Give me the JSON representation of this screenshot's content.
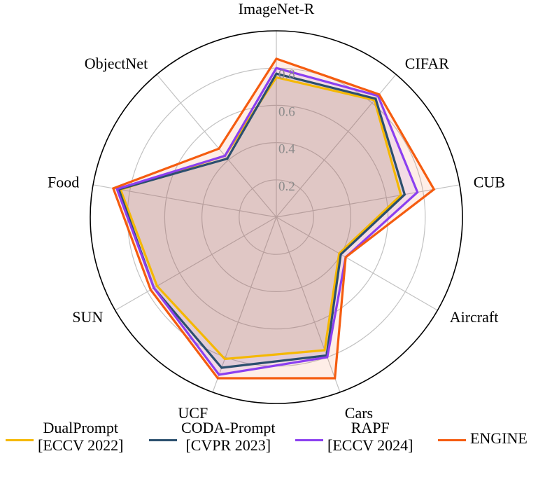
{
  "chart_data": {
    "type": "radar",
    "categories": [
      "ImageNet-R",
      "CIFAR",
      "CUB",
      "Aircraft",
      "Cars",
      "UCF",
      "SUN",
      "Food",
      "ObjectNet"
    ],
    "rlim": [
      0,
      1.0
    ],
    "radial_ticks": [
      0.2,
      0.4,
      0.6,
      0.8
    ],
    "radial_tick_labels": [
      "0.2",
      "0.4",
      "0.6",
      "0.8"
    ],
    "series": [
      {
        "name": "DualPrompt",
        "venue": "[ECCV 2022]",
        "color": "#f5b800",
        "values": [
          0.75,
          0.82,
          0.68,
          0.39,
          0.76,
          0.81,
          0.74,
          0.85,
          0.43
        ]
      },
      {
        "name": "CODA-Prompt",
        "venue": "[CVPR 2023]",
        "color": "#2b4f6e",
        "values": [
          0.77,
          0.83,
          0.7,
          0.4,
          0.79,
          0.86,
          0.76,
          0.86,
          0.41
        ]
      },
      {
        "name": "RAPF",
        "venue": "[ECCV 2024]",
        "color": "#8b3ff0",
        "values": [
          0.8,
          0.85,
          0.77,
          0.43,
          0.8,
          0.9,
          0.76,
          0.87,
          0.43
        ]
      },
      {
        "name": "ENGINE",
        "venue": "",
        "color": "#f55c0f",
        "values": [
          0.85,
          0.86,
          0.86,
          0.43,
          0.92,
          0.92,
          0.78,
          0.89,
          0.48
        ]
      }
    ]
  }
}
